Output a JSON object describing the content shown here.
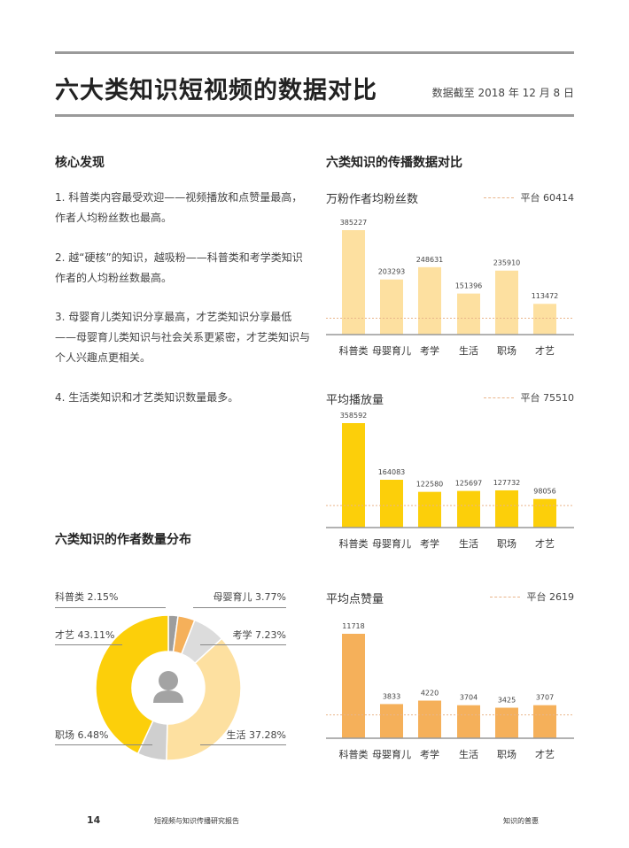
{
  "header": {
    "title": "六大类知识短视频的数据对比",
    "date": "数据截至 2018 年 12 月 8 日"
  },
  "findings": {
    "title": "核心发现",
    "items": [
      "1. 科普类内容最受欢迎——视频播放和点赞量最高，作者人均粉丝数也最高。",
      "2. 越“硬核”的知识，越吸粉——科普类和考学类知识作者的人均粉丝数最高。",
      "3. 母婴育儿类知识分享最高，才艺类知识分享最低——母婴育儿类知识与社会关系更紧密，才艺类知识与个人兴趣点更相关。",
      "4. 生活类知识和才艺类知识数量最多。"
    ]
  },
  "bar_section_title": "六类知识的传播数据对比",
  "donut_section_title": "六类知识的作者数量分布",
  "chart_data": [
    {
      "type": "bar",
      "title": "万粉作者均粉丝数",
      "categories": [
        "科普类",
        "母婴育儿",
        "考学",
        "生活",
        "职场",
        "才艺"
      ],
      "values": [
        385227,
        203293,
        248631,
        151396,
        235910,
        113472
      ],
      "reference": {
        "label": "平台 60414",
        "value": 60414
      },
      "color": "#fde0a0"
    },
    {
      "type": "bar",
      "title": "平均播放量",
      "categories": [
        "科普类",
        "母婴育儿",
        "考学",
        "生活",
        "职场",
        "才艺"
      ],
      "values": [
        358592,
        164083,
        122580,
        125697,
        127732,
        98056
      ],
      "reference": {
        "label": "平台 75510",
        "value": 75510
      },
      "color": "#fccf0a"
    },
    {
      "type": "bar",
      "title": "平均点赞量",
      "categories": [
        "科普类",
        "母婴育儿",
        "考学",
        "生活",
        "职场",
        "才艺"
      ],
      "values": [
        11718,
        3833,
        4220,
        3704,
        3425,
        3707
      ],
      "reference": {
        "label": "平台 2619",
        "value": 2619
      },
      "color": "#f5b05a"
    },
    {
      "type": "pie",
      "title": "六类知识的作者数量分布",
      "slices": [
        {
          "label": "科普类 2.15%",
          "name": "科普类",
          "value": 2.15,
          "color": "#9d9d9d"
        },
        {
          "label": "母婴育儿 3.77%",
          "name": "母婴育儿",
          "value": 3.77,
          "color": "#f5b05a"
        },
        {
          "label": "考学 7.23%",
          "name": "考学",
          "value": 7.23,
          "color": "#dcdcdc"
        },
        {
          "label": "生活 37.28%",
          "name": "生活",
          "value": 37.28,
          "color": "#fde0a0"
        },
        {
          "label": "职场 6.48%",
          "name": "职场",
          "value": 6.48,
          "color": "#cfcfcf"
        },
        {
          "label": "才艺 43.11%",
          "name": "才艺",
          "value": 43.11,
          "color": "#fccf0a"
        }
      ]
    }
  ],
  "footer": {
    "page": "14",
    "report": "短视频与知识传播研究报告",
    "section": "知识的普惠"
  }
}
